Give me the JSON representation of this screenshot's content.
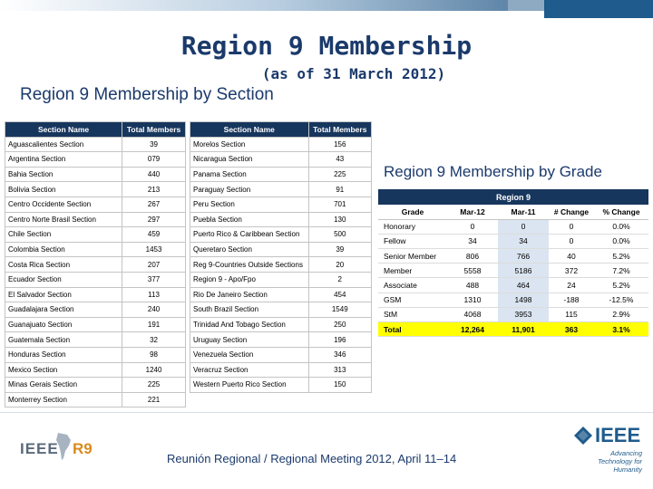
{
  "title": "Region 9 Membership",
  "subtitle": "(as of 31 March 2012)",
  "section_heading": "Region 9 Membership by Section",
  "grade_heading": "Region 9 Membership by Grade",
  "section_table": {
    "headers": [
      "Section Name",
      "Total Members",
      "Section Name",
      "Total Members"
    ],
    "left": [
      {
        "name": "Aguascalientes Section",
        "total": "39"
      },
      {
        "name": "Argentina Section",
        "total": "079"
      },
      {
        "name": "Bahia Section",
        "total": "440"
      },
      {
        "name": "Bolivia Section",
        "total": "213"
      },
      {
        "name": "Centro Occidente Section",
        "total": "267"
      },
      {
        "name": "Centro Norte Brasil Section",
        "total": "297"
      },
      {
        "name": "Chile Section",
        "total": "459"
      },
      {
        "name": "Colombia Section",
        "total": "1453"
      },
      {
        "name": "Costa Rica Section",
        "total": "207"
      },
      {
        "name": "Ecuador Section",
        "total": "377"
      },
      {
        "name": "El Salvador Section",
        "total": "113"
      },
      {
        "name": "Guadalajara Section",
        "total": "240"
      },
      {
        "name": "Guanajuato Section",
        "total": "191"
      },
      {
        "name": "Guatemala Section",
        "total": "32"
      },
      {
        "name": "Honduras Section",
        "total": "98"
      },
      {
        "name": "Mexico Section",
        "total": "1240"
      },
      {
        "name": "Minas Gerais Section",
        "total": "225"
      },
      {
        "name": "Monterrey Section",
        "total": "221"
      }
    ],
    "right": [
      {
        "name": "Morelos Section",
        "total": "156"
      },
      {
        "name": "Nicaragua Section",
        "total": "43"
      },
      {
        "name": "Panama Section",
        "total": "225"
      },
      {
        "name": "Paraguay Section",
        "total": "91"
      },
      {
        "name": "Peru Section",
        "total": "701"
      },
      {
        "name": "Puebla Section",
        "total": "130"
      },
      {
        "name": "Puerto Rico & Caribbean Section",
        "total": "500"
      },
      {
        "name": "Queretaro Section",
        "total": "39"
      },
      {
        "name": "Reg 9-Countries Outside Sections",
        "total": "20"
      },
      {
        "name": "Region 9 - Apo/Fpo",
        "total": "2"
      },
      {
        "name": "Rio De Janeiro Section",
        "total": "454"
      },
      {
        "name": "South Brazil Section",
        "total": "1549"
      },
      {
        "name": "Trinidad And Tobago Section",
        "total": "250"
      },
      {
        "name": "Uruguay Section",
        "total": "196"
      },
      {
        "name": "Venezuela Section",
        "total": "346"
      },
      {
        "name": "Veracruz Section",
        "total": "313"
      },
      {
        "name": "Western Puerto Rico Section",
        "total": "150"
      }
    ]
  },
  "grade_table": {
    "region_title": "Region 9",
    "headers": [
      "Grade",
      "Mar-12",
      "Mar-11",
      "# Change",
      "% Change"
    ],
    "rows": [
      {
        "grade": "Honorary",
        "mar12": "0",
        "mar11": "0",
        "change": "0",
        "pct": "0.0%"
      },
      {
        "grade": "Fellow",
        "mar12": "34",
        "mar11": "34",
        "change": "0",
        "pct": "0.0%"
      },
      {
        "grade": "Senior Member",
        "mar12": "806",
        "mar11": "766",
        "change": "40",
        "pct": "5.2%"
      },
      {
        "grade": "Member",
        "mar12": "5558",
        "mar11": "5186",
        "change": "372",
        "pct": "7.2%"
      },
      {
        "grade": "Associate",
        "mar12": "488",
        "mar11": "464",
        "change": "24",
        "pct": "5.2%"
      },
      {
        "grade": "GSM",
        "mar12": "1310",
        "mar11": "1498",
        "change": "-188",
        "pct": "-12.5%"
      },
      {
        "grade": "StM",
        "mar12": "4068",
        "mar11": "3953",
        "change": "115",
        "pct": "2.9%"
      }
    ],
    "total": {
      "grade": "Total",
      "mar12": "12,264",
      "mar11": "11,901",
      "change": "363",
      "pct": "3.1%"
    }
  },
  "footer": {
    "text": "Reunión Regional / Regional Meeting 2012, April 11–14",
    "logo_left_text": "IEEE",
    "logo_left_region": "R9",
    "logo_right_brand": "IEEE",
    "logo_right_tagline": "Advancing Technology for Humanity"
  },
  "colors": {
    "header_navy": "#17365d",
    "title_blue": "#1b3a6b",
    "total_highlight": "#ffff00",
    "mar11_column": "#dbe5f1"
  }
}
